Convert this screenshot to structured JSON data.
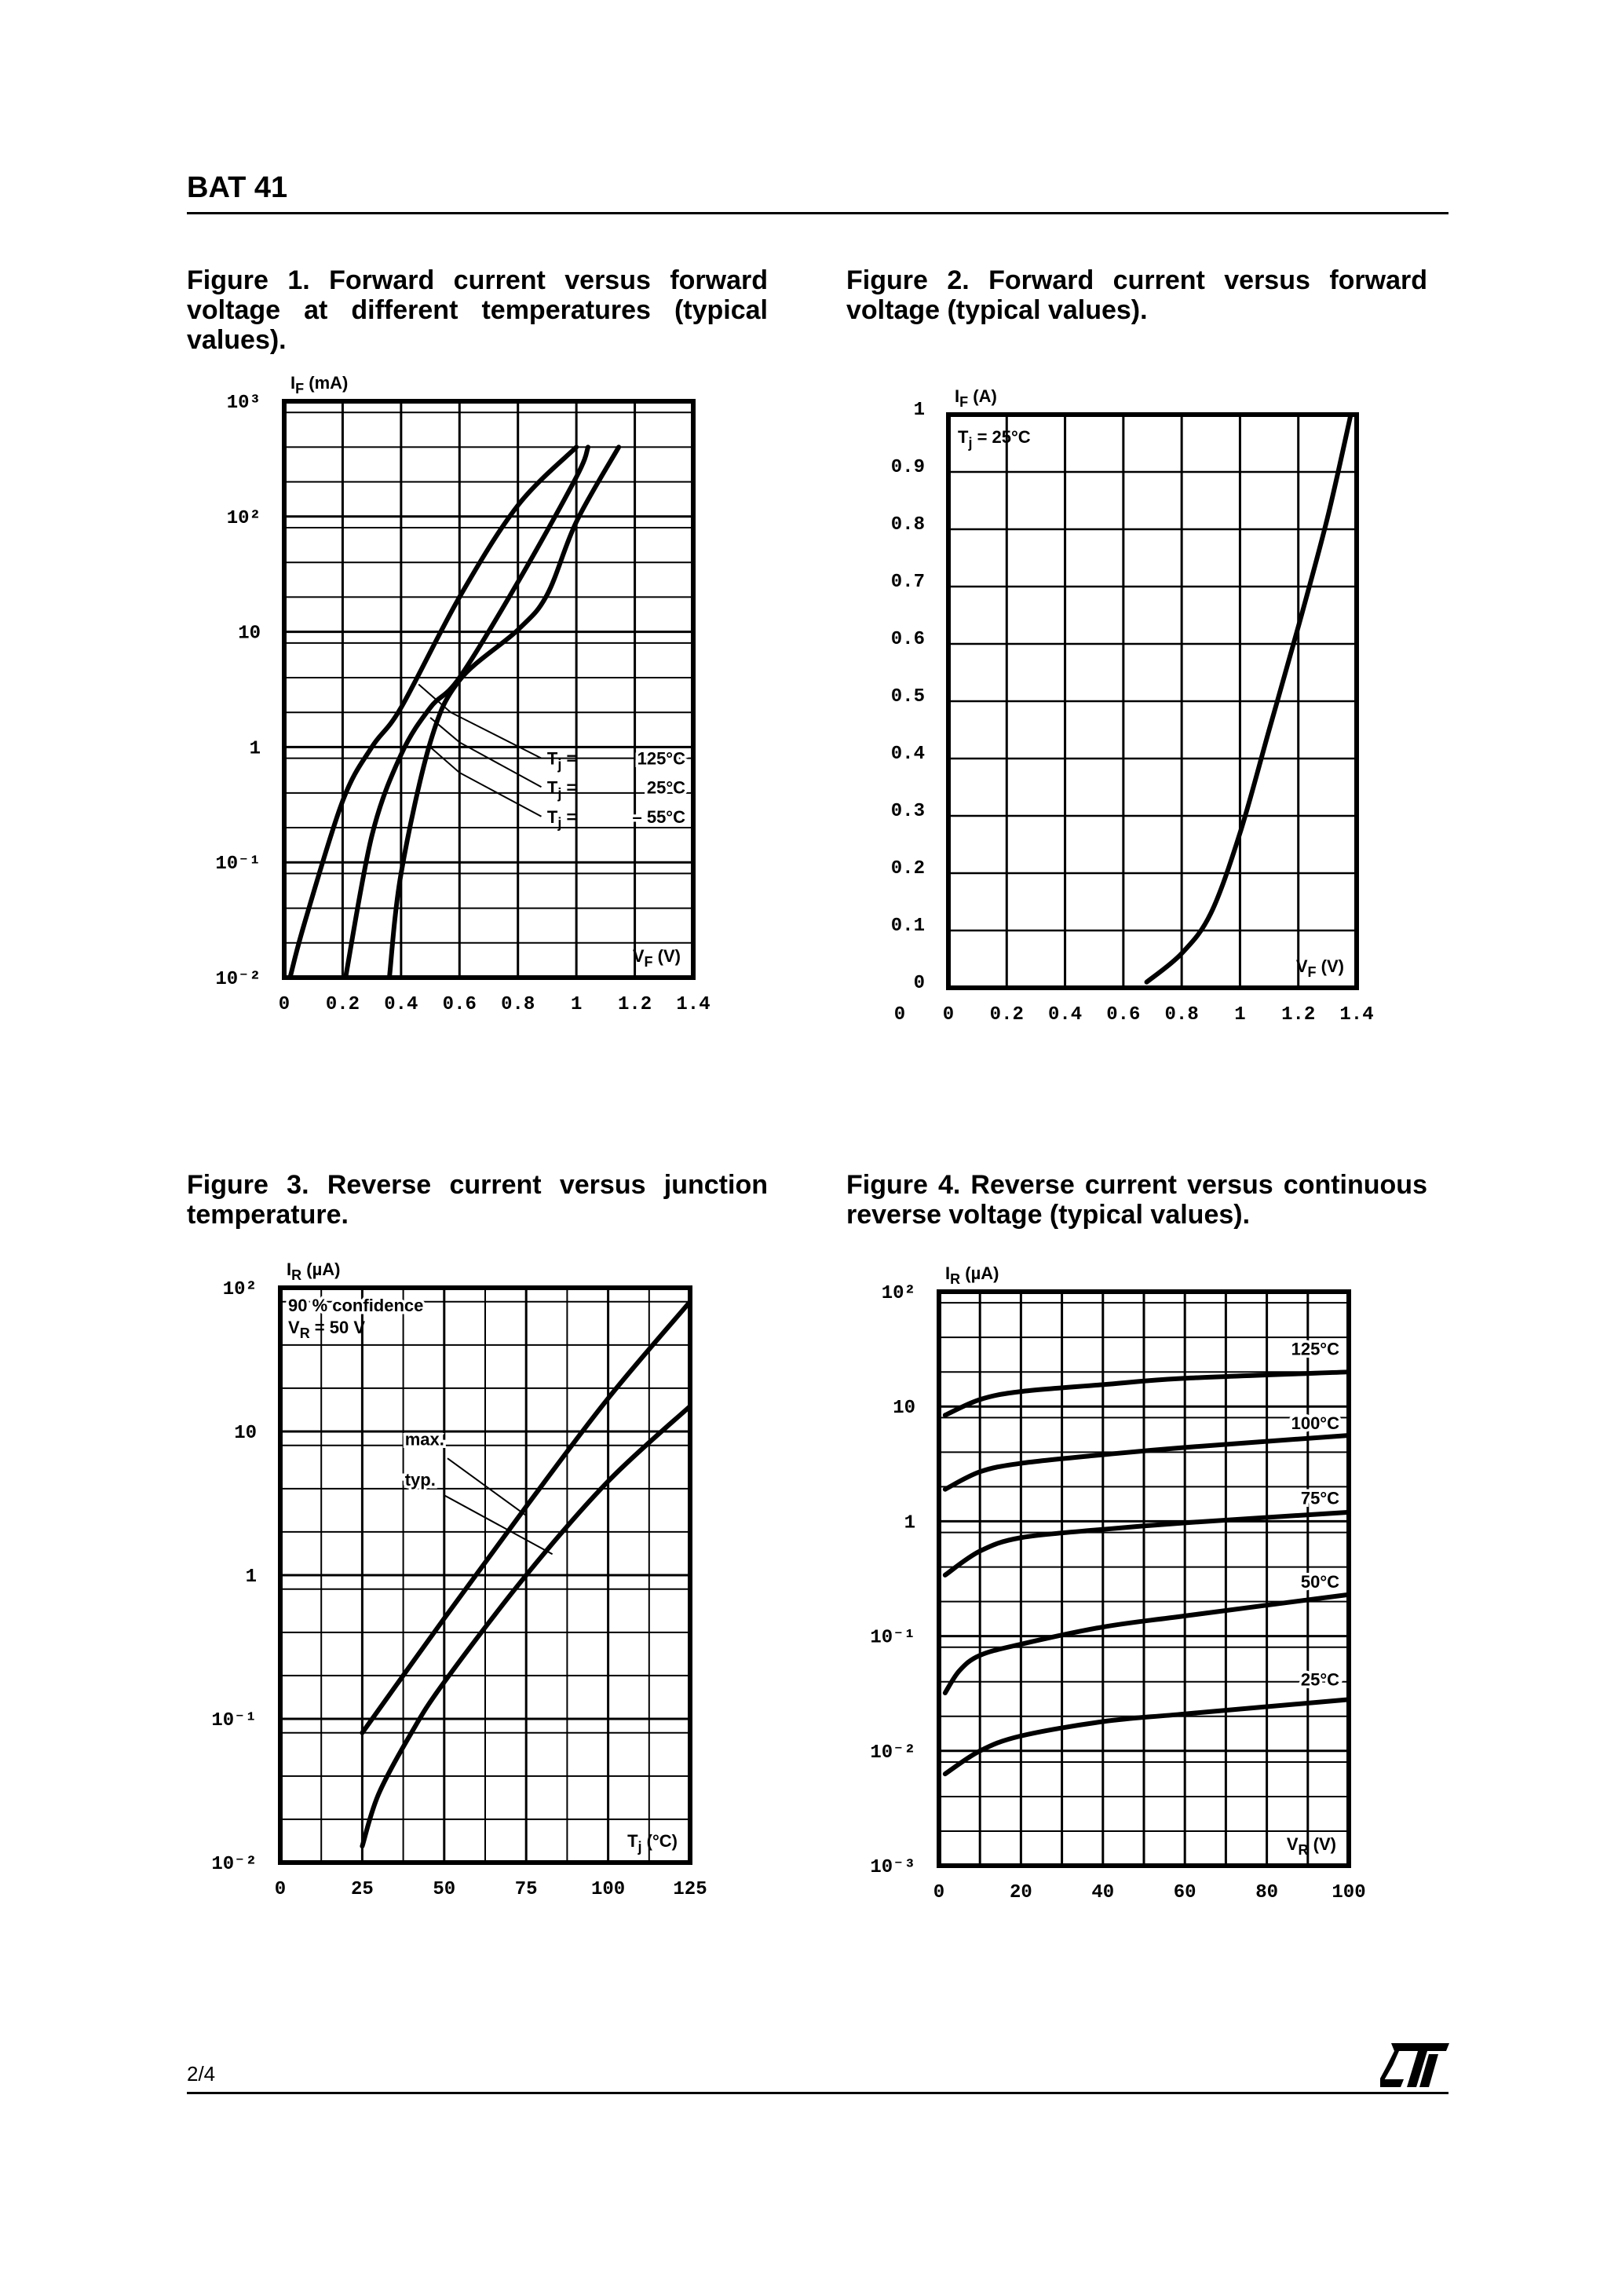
{
  "header": {
    "title": "BAT 41"
  },
  "captions": [
    "Figure 1. Forward current versus forward voltage at different temperatures (typical values).",
    "Figure 2. Forward current versus forward voltage (typical values).",
    "Figure 3. Reverse current versus junction temperature.",
    "Figure 4. Reverse current versus continuous reverse voltage (typical values)."
  ],
  "footer": {
    "page": "2/4",
    "logo_text": "ST"
  },
  "chart_data": [
    {
      "type": "line",
      "title": "Figure 1",
      "yscale": "log",
      "xlim": [
        0,
        1.4
      ],
      "ylim": [
        0.01,
        1000
      ],
      "ylabel": {
        "sym": "I",
        "sub": "F",
        "unit": "(mA)"
      },
      "xlabel": {
        "sym": "V",
        "sub": "F",
        "unit": "(V)"
      },
      "xticks": [
        0,
        0.2,
        0.4,
        0.6,
        0.8,
        1,
        1.2,
        1.4
      ],
      "xtick_labels": [
        "0",
        "0.2",
        "0.4",
        "0.6",
        "0.8",
        "1",
        "1.2",
        "1.4"
      ],
      "yticks": [
        1000,
        100,
        10,
        1,
        0.1,
        0.01
      ],
      "ytick_labels": [
        "10³",
        "10²",
        "10",
        "1",
        "10⁻¹",
        "10⁻²"
      ],
      "series": [
        {
          "name": "Tj = 125°C",
          "label": "125°C",
          "x": [
            0.02,
            0.07,
            0.2,
            0.3,
            0.4,
            0.6,
            0.8,
            1.0
          ],
          "y": [
            0.01,
            0.03,
            0.34,
            1,
            2.2,
            20,
            125,
            400
          ]
        },
        {
          "name": "Tj = 25°C",
          "label": "25°C",
          "x": [
            0.21,
            0.3,
            0.4,
            0.5,
            0.6,
            0.8,
            1.0,
            1.04
          ],
          "y": [
            0.01,
            0.17,
            0.86,
            2.2,
            4,
            27,
            220,
            400
          ]
        },
        {
          "name": "Tj = -55°C",
          "label": "– 55°C",
          "x": [
            0.36,
            0.4,
            0.5,
            0.6,
            0.8,
            0.9,
            1.0,
            1.145
          ],
          "y": [
            0.01,
            0.08,
            1.1,
            3.8,
            10.4,
            21,
            90,
            400
          ]
        }
      ],
      "legend_prefix": {
        "sym": "T",
        "sub": "j",
        "eq": "="
      }
    },
    {
      "type": "line",
      "title": "Figure 2",
      "yscale": "linear",
      "xlim": [
        0,
        1.4
      ],
      "ylim": [
        0,
        1
      ],
      "ylabel": {
        "sym": "I",
        "sub": "F",
        "unit": "(A)"
      },
      "xlabel": {
        "sym": "V",
        "sub": "F",
        "unit": "(V)"
      },
      "xticks": [
        0,
        0.2,
        0.4,
        0.6,
        0.8,
        1,
        1.2,
        1.4
      ],
      "xtick_labels": [
        "0",
        "0.2",
        "0.4",
        "0.6",
        "0.8",
        "1",
        "1.2",
        "1.4"
      ],
      "yticks": [
        1,
        0.9,
        0.8,
        0.7,
        0.6,
        0.5,
        0.4,
        0.3,
        0.2,
        0.1,
        0
      ],
      "ytick_labels": [
        "1",
        "0.9",
        "0.8",
        "0.7",
        "0.6",
        "0.5",
        "0.4",
        "0.3",
        "0.2",
        "0.1",
        "0"
      ],
      "series": [
        {
          "name": "Tj = 25°C",
          "x": [
            0.68,
            0.8,
            0.9,
            1.0,
            1.1,
            1.2,
            1.3,
            1.38
          ],
          "y": [
            0.01,
            0.06,
            0.13,
            0.27,
            0.45,
            0.63,
            0.82,
            1.0
          ]
        }
      ],
      "annotations": [
        {
          "sym": "T",
          "sub": "j",
          "text": "= 25°C"
        }
      ]
    },
    {
      "type": "line",
      "title": "Figure 3",
      "yscale": "log",
      "xlim": [
        0,
        125
      ],
      "ylim": [
        0.01,
        100
      ],
      "ylabel": {
        "sym": "I",
        "sub": "R",
        "unit": "(µA)"
      },
      "xlabel": {
        "sym": "T",
        "sub": "j",
        "unit": "(°C)"
      },
      "xticks": [
        0,
        25,
        50,
        75,
        100,
        125
      ],
      "xtick_labels": [
        "0",
        "25",
        "50",
        "75",
        "100",
        "125"
      ],
      "yticks": [
        100,
        10,
        1,
        0.1,
        0.01
      ],
      "ytick_labels": [
        "10²",
        "10",
        "1",
        "10⁻¹",
        "10⁻²"
      ],
      "series": [
        {
          "name": "max.",
          "x": [
            25,
            50,
            75,
            100,
            125
          ],
          "y": [
            0.08,
            0.5,
            3,
            17,
            80
          ]
        },
        {
          "name": "typ.",
          "x": [
            25,
            30,
            40,
            50,
            75,
            100,
            125
          ],
          "y": [
            0.013,
            0.03,
            0.08,
            0.18,
            1.0,
            4.5,
            15
          ]
        }
      ],
      "annotations": [
        {
          "text": "90 % confidence"
        },
        {
          "sym": "V",
          "sub": "R",
          "text": "= 50 V"
        }
      ]
    },
    {
      "type": "line",
      "title": "Figure 4",
      "yscale": "log",
      "xlim": [
        0,
        100
      ],
      "ylim": [
        0.001,
        100
      ],
      "ylabel": {
        "sym": "I",
        "sub": "R",
        "unit": "(µA)"
      },
      "xlabel": {
        "sym": "V",
        "sub": "R",
        "unit": "(V)"
      },
      "xticks": [
        0,
        20,
        40,
        60,
        80,
        100
      ],
      "xtick_labels": [
        "0",
        "20",
        "40",
        "60",
        "80",
        "100"
      ],
      "yticks": [
        100,
        10,
        1,
        0.1,
        0.01,
        0.001
      ],
      "ytick_labels": [
        "10²",
        "10",
        "1",
        "10⁻¹",
        "10⁻²",
        "10⁻³"
      ],
      "series": [
        {
          "name": "125°C",
          "x": [
            1.5,
            10,
            20,
            40,
            60,
            100
          ],
          "y": [
            8.4,
            11.5,
            13.5,
            15.5,
            17.6,
            20
          ]
        },
        {
          "name": "100°C",
          "x": [
            1.5,
            10,
            20,
            40,
            60,
            100
          ],
          "y": [
            1.9,
            2.7,
            3.2,
            3.8,
            4.4,
            5.6
          ]
        },
        {
          "name": "75°C",
          "x": [
            1.5,
            10,
            20,
            40,
            60,
            100
          ],
          "y": [
            0.34,
            0.55,
            0.72,
            0.85,
            0.97,
            1.2
          ]
        },
        {
          "name": "50°C",
          "x": [
            1.5,
            5,
            10,
            20,
            40,
            60,
            100
          ],
          "y": [
            0.032,
            0.05,
            0.068,
            0.085,
            0.12,
            0.15,
            0.23
          ]
        },
        {
          "name": "25°C",
          "x": [
            1.5,
            10,
            20,
            40,
            60,
            100
          ],
          "y": [
            0.0063,
            0.01,
            0.0135,
            0.018,
            0.021,
            0.028
          ]
        }
      ]
    }
  ]
}
